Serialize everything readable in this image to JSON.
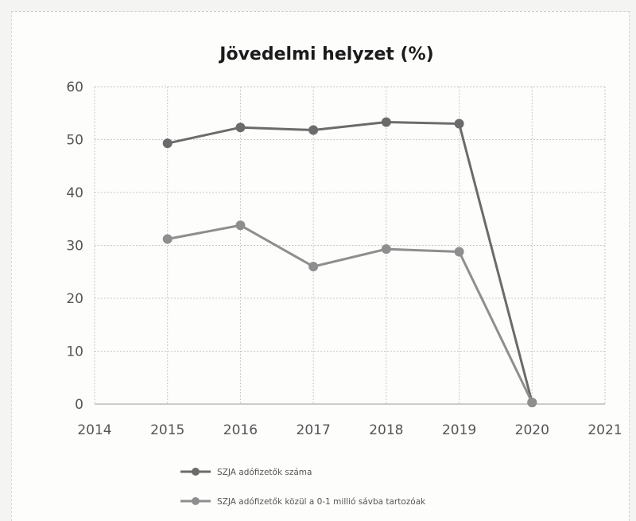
{
  "chart_data": {
    "type": "line",
    "title": "Jövedelmi helyzet (%)",
    "xlabel": "",
    "ylabel": "",
    "x": [
      2015,
      2016,
      2017,
      2018,
      2019,
      2020
    ],
    "xlim": [
      2014,
      2021
    ],
    "x_ticks": [
      "2014",
      "2015",
      "2016",
      "2017",
      "2018",
      "2019",
      "2020",
      "2021"
    ],
    "ylim": [
      0,
      60
    ],
    "y_ticks": [
      "0",
      "10",
      "20",
      "30",
      "40",
      "50",
      "60"
    ],
    "grid": true,
    "legend_position": "bottom",
    "series": [
      {
        "name": "SZJA adófizetők száma",
        "values": [
          49.3,
          52.3,
          51.8,
          53.3,
          53.0,
          0.3
        ],
        "color": "#6b6b6b"
      },
      {
        "name": "SZJA adófizetők közül a 0-1 millió sávba tartozóak",
        "values": [
          31.2,
          33.8,
          26.0,
          29.3,
          28.8,
          0.3
        ],
        "color": "#8e8e8e"
      }
    ]
  }
}
